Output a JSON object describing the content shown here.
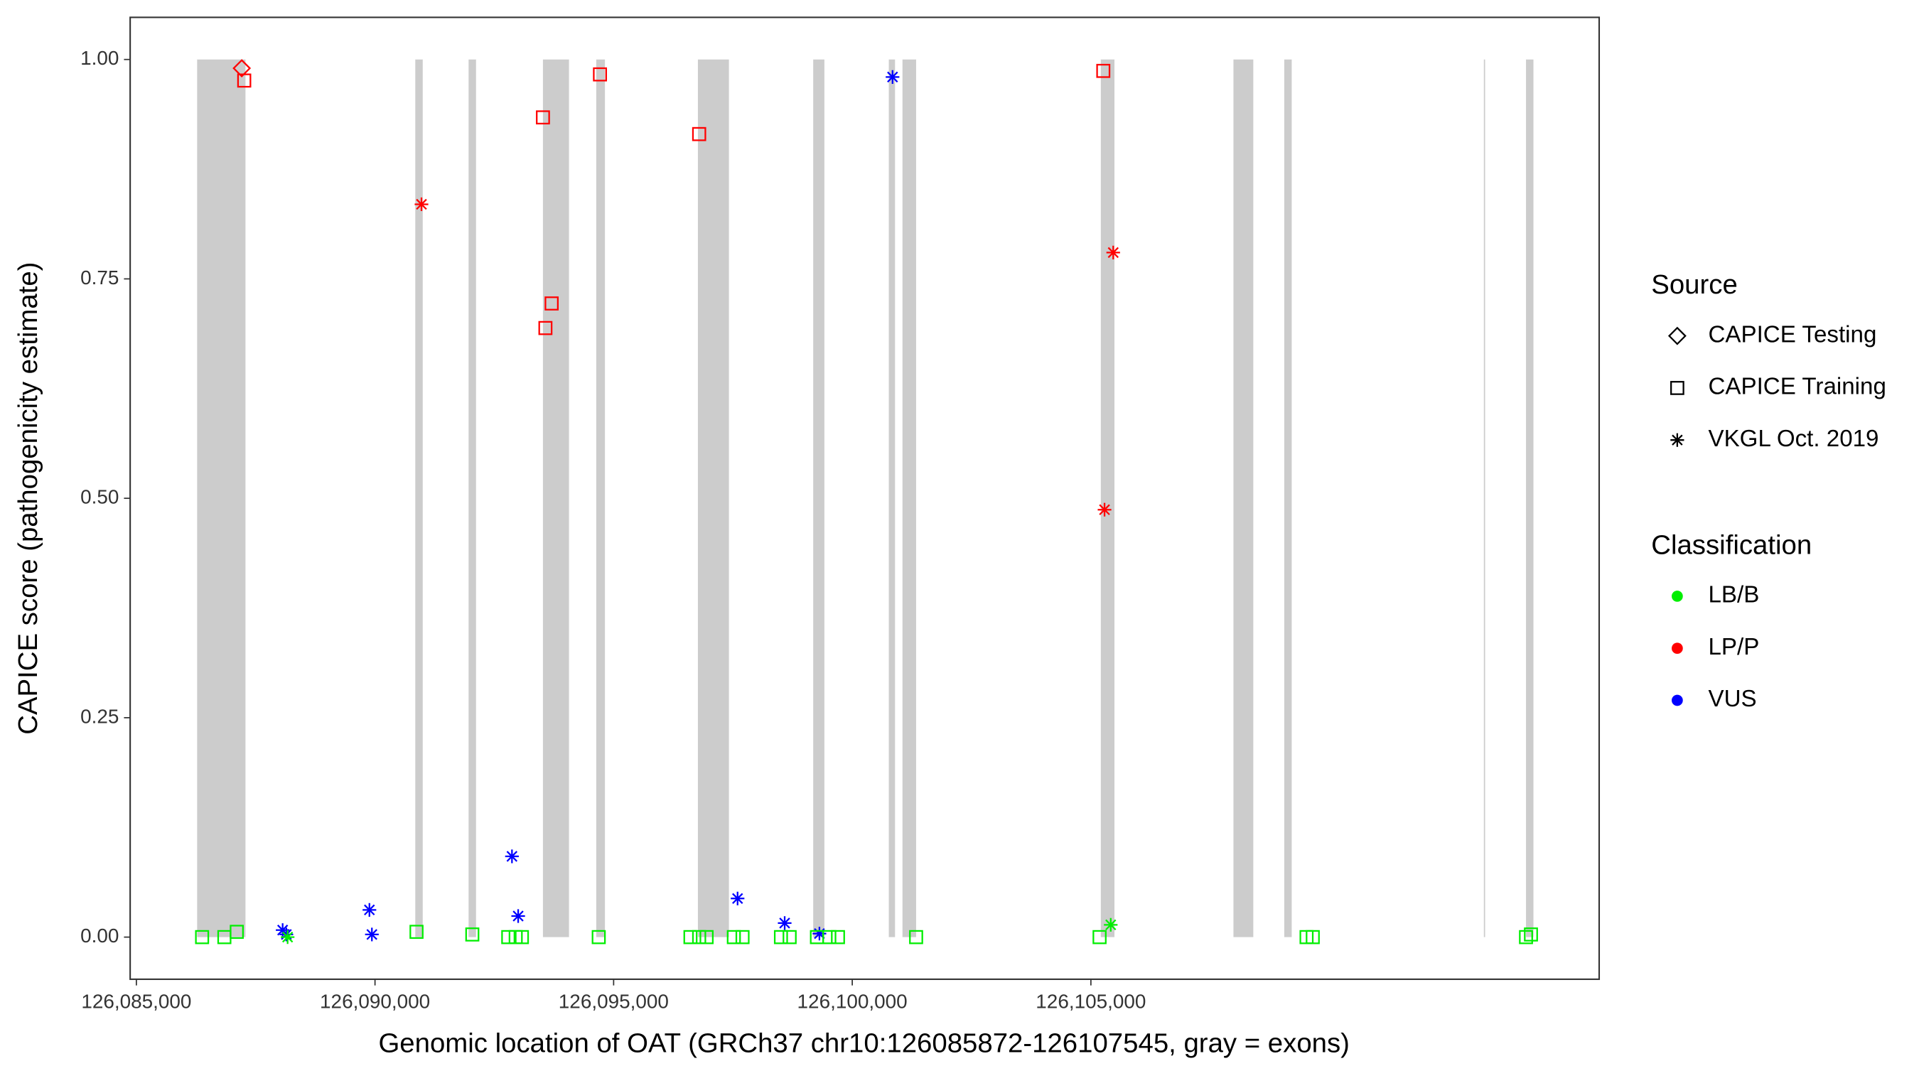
{
  "chart_data": {
    "type": "scatter",
    "x_label": "Genomic location of OAT (GRCh37 chr10:126085872-126107545, gray = exons)",
    "y_label": "CAPICE score (pathogenicity estimate)",
    "xlim": [
      126084870,
      126115650
    ],
    "ylim": [
      -0.048,
      1.048
    ],
    "xticks": [
      {
        "value": 126085000,
        "label": "126,085,000"
      },
      {
        "value": 126090000,
        "label": "126,090,000"
      },
      {
        "value": 126095000,
        "label": "126,095,000"
      },
      {
        "value": 126100000,
        "label": "126,100,000"
      },
      {
        "value": 126105000,
        "label": "126,105,000"
      }
    ],
    "yticks": [
      {
        "value": 0,
        "label": "0.00"
      },
      {
        "value": 0.25,
        "label": "0.25"
      },
      {
        "value": 0.5,
        "label": "0.50"
      },
      {
        "value": 0.75,
        "label": "0.75"
      },
      {
        "value": 1,
        "label": "1.00"
      }
    ],
    "exon_color": "#cccccc",
    "exons": [
      [
        126086273,
        126087286
      ],
      [
        126090844,
        126091000
      ],
      [
        126091961,
        126092117
      ],
      [
        126093519,
        126094065
      ],
      [
        126094636,
        126094818
      ],
      [
        126096766,
        126097416
      ],
      [
        126099182,
        126099416
      ],
      [
        126100766,
        126100896
      ],
      [
        126101052,
        126101338
      ],
      [
        126105208,
        126105494
      ],
      [
        126107987,
        126108403
      ],
      [
        126109052,
        126109208
      ],
      [
        126113234,
        126113260
      ],
      [
        126114117,
        126114273
      ]
    ],
    "source_legend": {
      "title": "Source",
      "names": [
        "CAPICE Testing",
        "CAPICE Training",
        "VKGL Oct. 2019"
      ],
      "shapes": [
        "diamond",
        "square",
        "asterisk"
      ]
    },
    "classification_legend": {
      "title": "Classification",
      "names": [
        "LB/B",
        "LP/P",
        "VUS"
      ],
      "colors": [
        "#00ee00",
        "#ff0000",
        "#0000ff"
      ]
    },
    "points": {
      "x": [
        126087208,
        126087260,
        126093519,
        126094714,
        126096792,
        126093701,
        126093571,
        126105260,
        126090974,
        126105468,
        126105286,
        126088065,
        126088143,
        126089883,
        126089935,
        126092870,
        126093000,
        126097597,
        126098584,
        126099312,
        126100844,
        126088169,
        126105416,
        126086377,
        126086844,
        126087104,
        126090870,
        126092039,
        126092792,
        126092948,
        126093078,
        126094688,
        126096610,
        126096792,
        126096948,
        126097519,
        126097701,
        126098506,
        126098688,
        126099260,
        126099519,
        126099701,
        126101338,
        126105182,
        126109519,
        126109649,
        126114117,
        126114221
      ],
      "y": [
        0.99,
        0.976,
        0.934,
        0.983,
        0.915,
        0.722,
        0.694,
        0.987,
        0.835,
        0.78,
        0.487,
        0.008,
        0.003,
        0.031,
        0.003,
        0.092,
        0.024,
        0.044,
        0.016,
        0.004,
        0.98,
        0,
        0.014,
        0,
        0,
        0.006,
        0.006,
        0.003,
        0,
        0,
        0,
        0,
        0,
        0,
        0,
        0,
        0,
        0,
        0,
        0,
        0,
        0,
        0,
        0,
        0,
        0,
        0,
        0.003
      ],
      "source": [
        "CAPICE Testing",
        "CAPICE Training",
        "CAPICE Training",
        "CAPICE Training",
        "CAPICE Training",
        "CAPICE Training",
        "CAPICE Training",
        "CAPICE Training",
        "VKGL Oct. 2019",
        "VKGL Oct. 2019",
        "VKGL Oct. 2019",
        "VKGL Oct. 2019",
        "VKGL Oct. 2019",
        "VKGL Oct. 2019",
        "VKGL Oct. 2019",
        "VKGL Oct. 2019",
        "VKGL Oct. 2019",
        "VKGL Oct. 2019",
        "VKGL Oct. 2019",
        "VKGL Oct. 2019",
        "VKGL Oct. 2019",
        "VKGL Oct. 2019",
        "VKGL Oct. 2019",
        "CAPICE Training",
        "CAPICE Training",
        "CAPICE Training",
        "CAPICE Training",
        "CAPICE Training",
        "CAPICE Training",
        "CAPICE Training",
        "CAPICE Training",
        "CAPICE Training",
        "CAPICE Training",
        "CAPICE Training",
        "CAPICE Training",
        "CAPICE Training",
        "CAPICE Training",
        "CAPICE Training",
        "CAPICE Training",
        "CAPICE Training",
        "CAPICE Training",
        "CAPICE Training",
        "CAPICE Training",
        "CAPICE Training",
        "CAPICE Training",
        "CAPICE Training",
        "CAPICE Training",
        "CAPICE Training"
      ],
      "classification": [
        "LP/P",
        "LP/P",
        "LP/P",
        "LP/P",
        "LP/P",
        "LP/P",
        "LP/P",
        "LP/P",
        "LP/P",
        "LP/P",
        "LP/P",
        "VUS",
        "VUS",
        "VUS",
        "VUS",
        "VUS",
        "VUS",
        "VUS",
        "VUS",
        "VUS",
        "VUS",
        "LB/B",
        "LB/B",
        "LB/B",
        "LB/B",
        "LB/B",
        "LB/B",
        "LB/B",
        "LB/B",
        "LB/B",
        "LB/B",
        "LB/B",
        "LB/B",
        "LB/B",
        "LB/B",
        "LB/B",
        "LB/B",
        "LB/B",
        "LB/B",
        "LB/B",
        "LB/B",
        "LB/B",
        "LB/B",
        "LB/B",
        "LB/B",
        "LB/B",
        "LB/B",
        "LB/B"
      ]
    }
  }
}
